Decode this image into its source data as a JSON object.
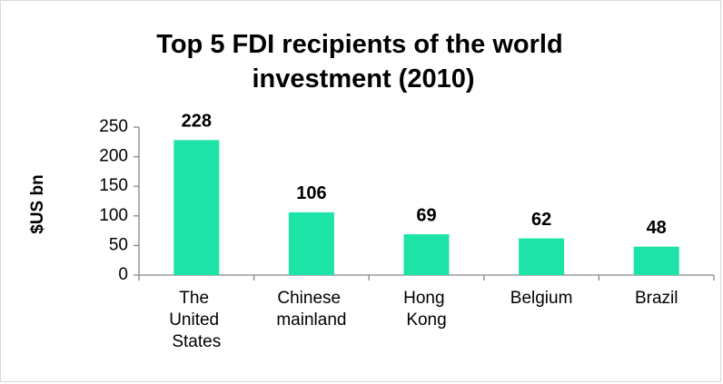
{
  "chart_data": {
    "type": "bar",
    "title": "Top 5 FDI recipients of the world investment (2010)",
    "y_label": "$US bn",
    "categories": [
      "The United States",
      "Chinese mainland",
      "Hong Kong",
      "Belgium",
      "Brazil"
    ],
    "values": [
      228,
      106,
      69,
      62,
      48
    ],
    "color": "#1ee3a6",
    "ylim": [
      0,
      250
    ],
    "yticks": [
      0,
      50,
      100,
      150,
      200,
      250
    ],
    "grid": false
  }
}
